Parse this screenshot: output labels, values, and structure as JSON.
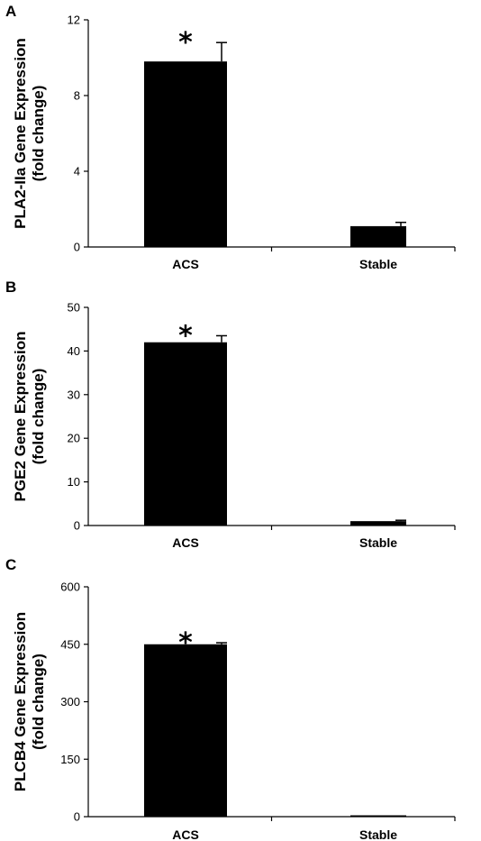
{
  "chart_data": [
    {
      "type": "bar",
      "panel": "A",
      "categories": [
        "ACS",
        "Stable"
      ],
      "values": [
        9.8,
        1.1
      ],
      "errors": [
        1.0,
        0.2
      ],
      "annotations": [
        "*",
        ""
      ],
      "ylabel_lines": [
        "PLA2-IIa Gene Expression",
        "(fold change)"
      ],
      "yticks": [
        0,
        4,
        8,
        12
      ],
      "ylim": [
        0,
        12
      ]
    },
    {
      "type": "bar",
      "panel": "B",
      "categories": [
        "ACS",
        "Stable"
      ],
      "values": [
        42,
        1
      ],
      "errors": [
        1.5,
        0.2
      ],
      "annotations": [
        "*",
        ""
      ],
      "ylabel_lines": [
        "PGE2 Gene Expression",
        "(fold change)"
      ],
      "yticks": [
        0,
        10,
        20,
        30,
        40,
        50
      ],
      "ylim": [
        0,
        50
      ]
    },
    {
      "type": "bar",
      "panel": "C",
      "categories": [
        "ACS",
        "Stable"
      ],
      "values": [
        450,
        1
      ],
      "errors": [
        4,
        0
      ],
      "annotations": [
        "*",
        ""
      ],
      "ylabel_lines": [
        "PLCB4 Gene Expression",
        "(fold change)"
      ],
      "yticks": [
        0,
        150,
        300,
        450,
        600
      ],
      "ylim": [
        0,
        600
      ]
    }
  ]
}
